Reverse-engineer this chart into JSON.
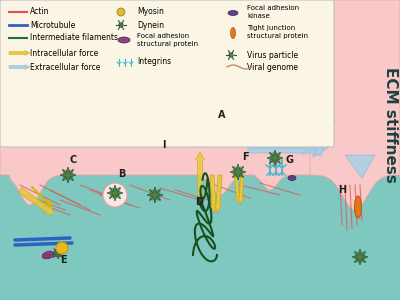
{
  "background_color": "#7ec8c0",
  "legend_bg": "#faf5e4",
  "cell_color": "#f9c8c8",
  "cell_border": "#e8a0a0",
  "title_text": "ECM stiffness",
  "legend_items": [
    {
      "label": "Actin",
      "type": "line",
      "color": "#e05050"
    },
    {
      "label": "Microtubule",
      "type": "line",
      "color": "#3060c0"
    },
    {
      "label": "Intermediate filaments",
      "type": "line",
      "color": "#207030"
    },
    {
      "label": "Intracellular force",
      "type": "arrow",
      "color": "#e8c840"
    },
    {
      "label": "Extracellular force",
      "type": "arrow",
      "color": "#a0c8e0"
    },
    {
      "label": "Myosin",
      "type": "circle",
      "color": "#e8b820"
    },
    {
      "label": "Dynein",
      "type": "starburst",
      "color": "#507060"
    },
    {
      "label": "Focal adhesion\nstructural protein",
      "type": "oval",
      "color": "#904080"
    },
    {
      "label": "Integrins",
      "type": "integrins",
      "color": "#40b8d0"
    },
    {
      "label": "Focal adhesion\nkinase",
      "type": "oval_small",
      "color": "#604080"
    },
    {
      "label": "Tight junction\nstructural protein",
      "type": "oval_orange",
      "color": "#e07820"
    },
    {
      "label": "Virus particle",
      "type": "starburst2",
      "color": "#508040"
    },
    {
      "label": "Viral genome",
      "type": "wavy",
      "color": "#c09070"
    }
  ]
}
